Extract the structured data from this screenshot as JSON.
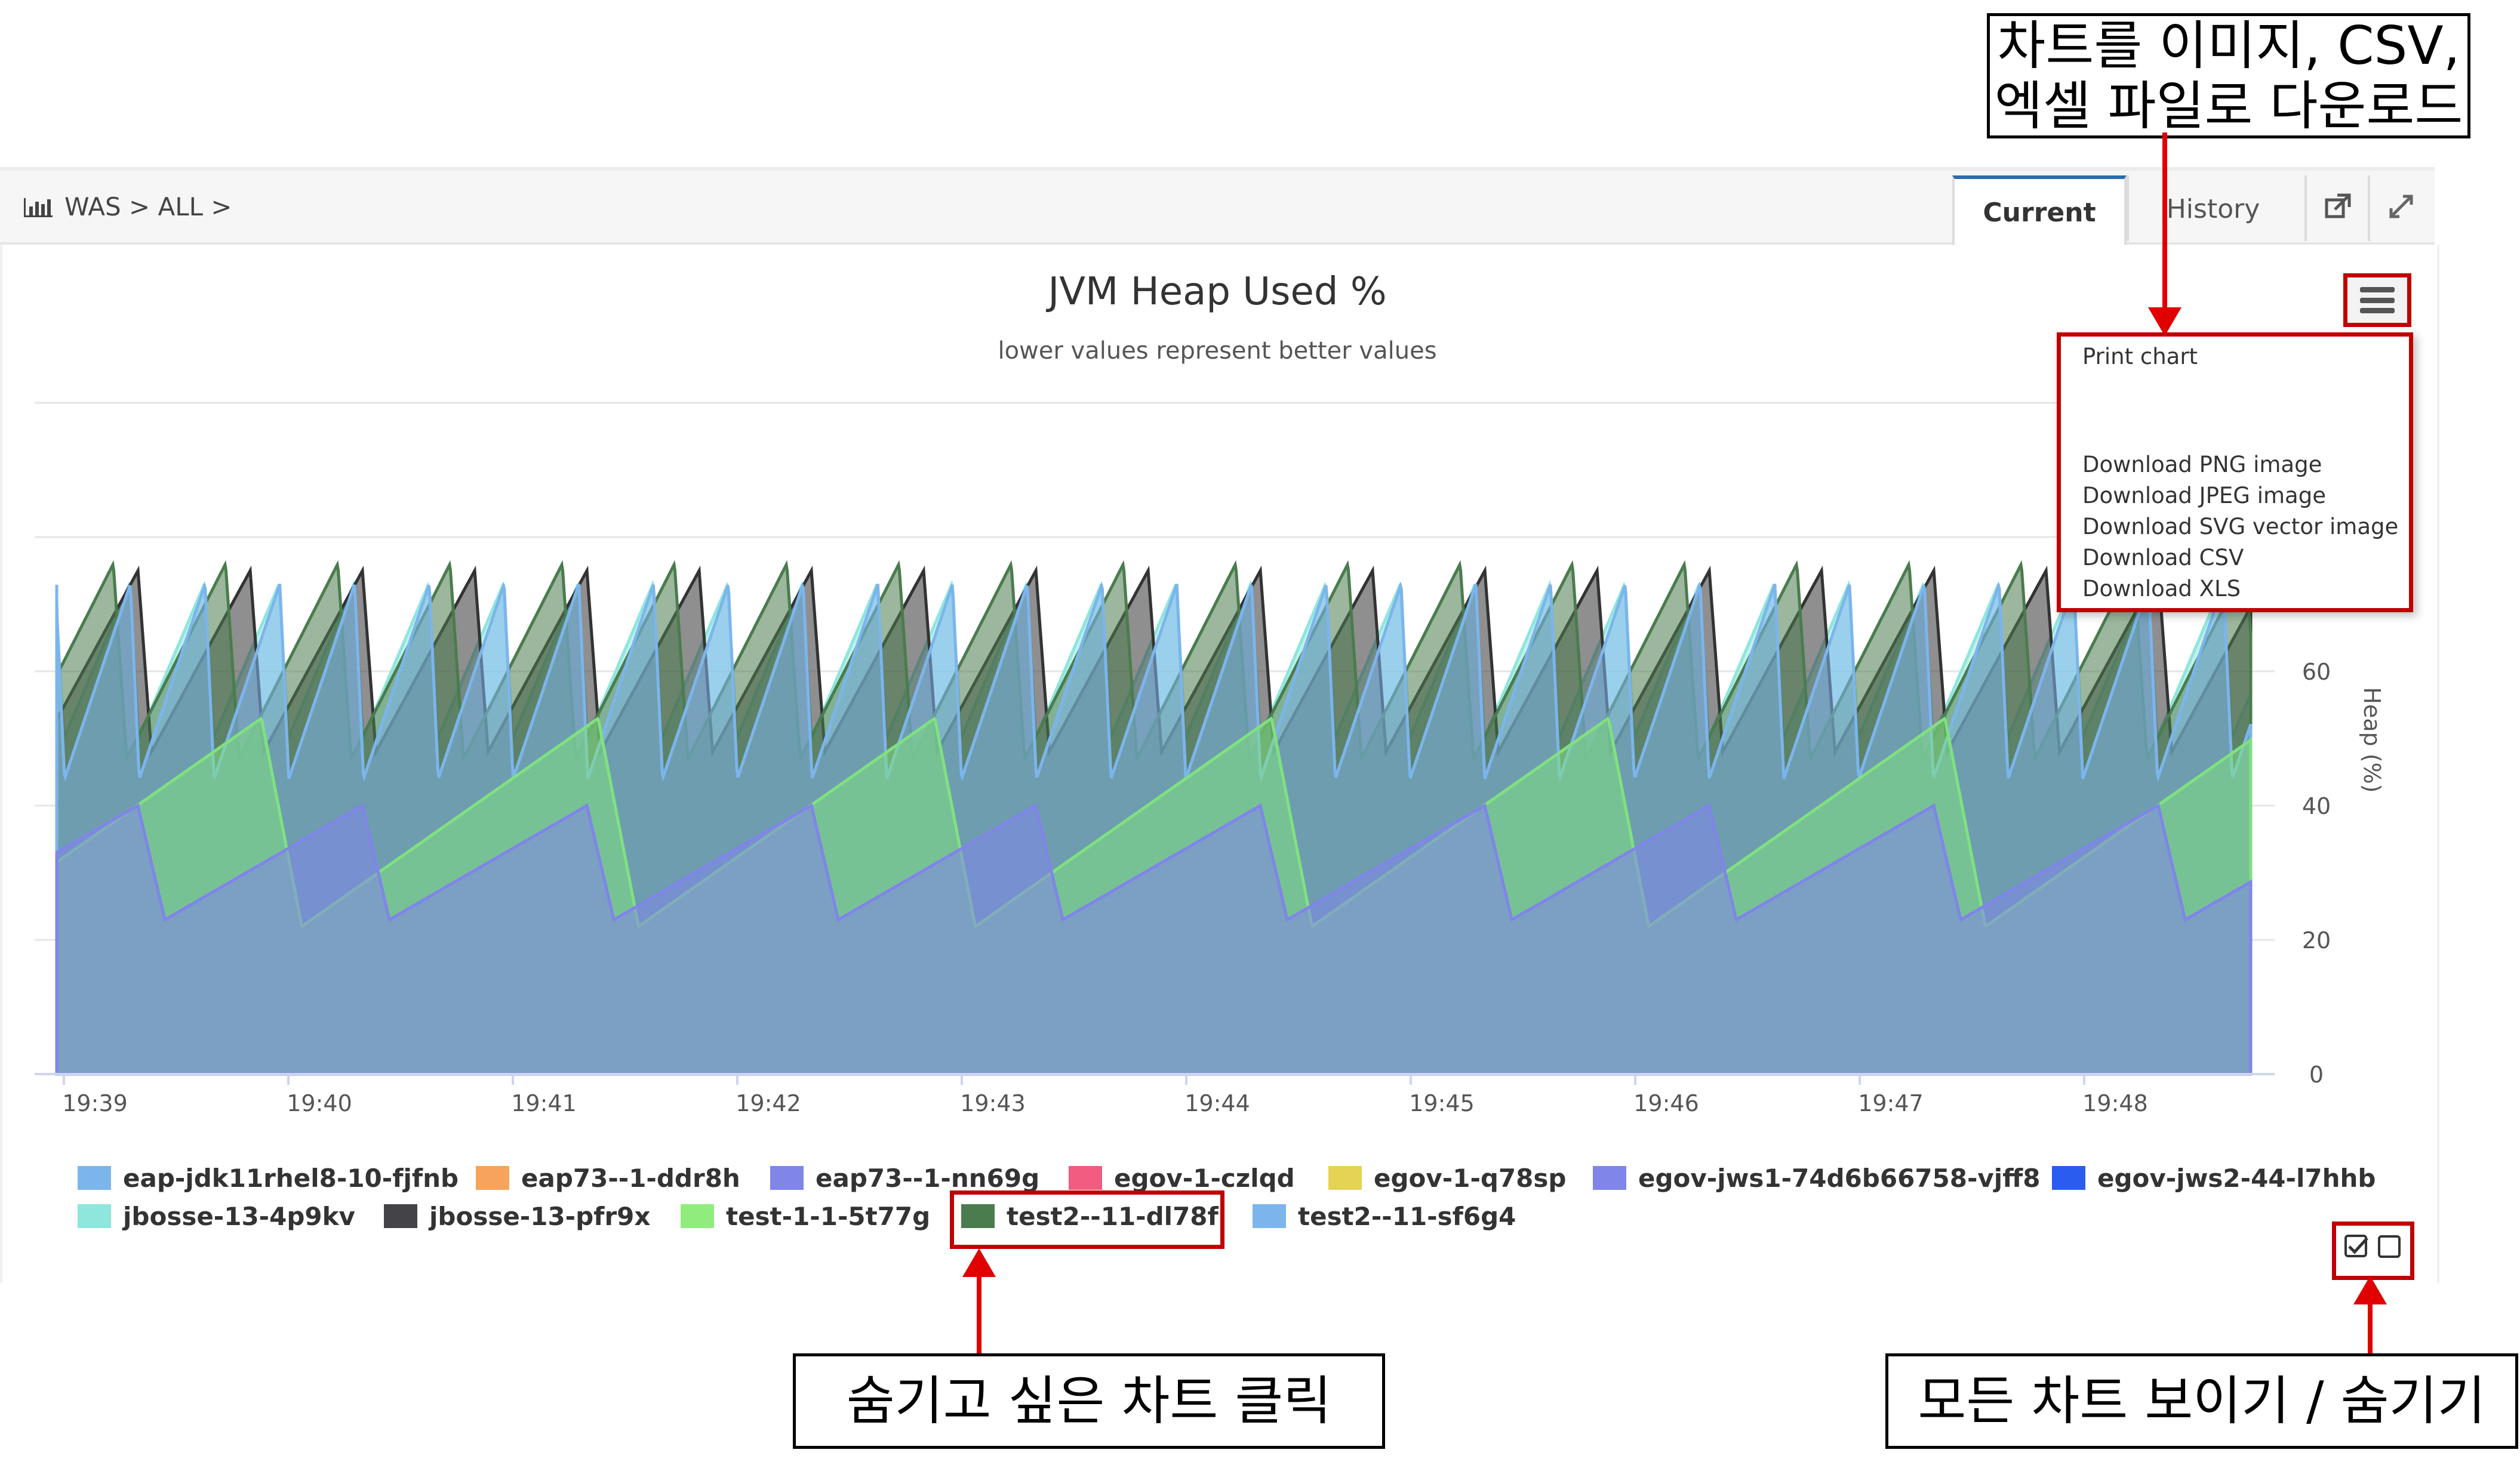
{
  "breadcrumb": {
    "icon": "bar-chart-icon",
    "text": "WAS > ALL >"
  },
  "tabs": [
    {
      "label": "Current",
      "active": true
    },
    {
      "label": "History",
      "active": false
    }
  ],
  "header_icons": [
    "external-link-icon",
    "expand-icon"
  ],
  "chart_data": {
    "type": "area",
    "title": "JVM Heap Used %",
    "subtitle": "lower values represent better values",
    "ylabel": "Heap (%)",
    "ylim": [
      0,
      100
    ],
    "yticks": [
      0,
      20,
      40,
      60
    ],
    "xticks": [
      "19:39",
      "19:40",
      "19:41",
      "19:42",
      "19:43",
      "19:44",
      "19:45",
      "19:46",
      "19:47",
      "19:48"
    ],
    "series": [
      {
        "name": "jbosse-13-4p9kv",
        "color": "#8ee6dc",
        "period_min": 0.333,
        "low": 50,
        "high": 73
      },
      {
        "name": "jbosse-13-pfr9x",
        "color": "#333333",
        "period_min": 0.5,
        "low": 48,
        "high": 75
      },
      {
        "name": "test2--11-dl78f",
        "color": "#4a7c4e",
        "period_min": 0.5,
        "low": 47,
        "high": 76
      },
      {
        "name": "test2--11-sf6g4",
        "color": "#7cb5ec",
        "period_min": 0.333,
        "low": 44,
        "high": 73
      },
      {
        "name": "test-1-1-5t77g",
        "color": "#80e080",
        "period_min": 1.5,
        "low": 22,
        "high": 53
      },
      {
        "name": "egov-jws1-74d6b66758-vjff8",
        "color": "#8085e9",
        "period_min": 1.0,
        "low": 23,
        "high": 40
      }
    ]
  },
  "menu": {
    "items": [
      "Print chart",
      "Download PNG image",
      "Download JPEG image",
      "Download SVG vector image",
      "Download CSV",
      "Download XLS"
    ]
  },
  "legend": [
    {
      "name": "eap-jdk11rhel8-10-fjfnb",
      "color": "#7cb5ec"
    },
    {
      "name": "eap73--1-ddr8h",
      "color": "#f7a35c"
    },
    {
      "name": "eap73--1-nn69g",
      "color": "#8085e9"
    },
    {
      "name": "egov-1-czlqd",
      "color": "#f15c80"
    },
    {
      "name": "egov-1-q78sp",
      "color": "#e4d354"
    },
    {
      "name": "egov-jws1-74d6b66758-vjff8",
      "color": "#8085e9"
    },
    {
      "name": "egov-jws2-44-l7hhb",
      "color": "#2b5cf0"
    },
    {
      "name": "jbosse-13-4p9kv",
      "color": "#8ee6dc"
    },
    {
      "name": "jbosse-13-pfr9x",
      "color": "#434348"
    },
    {
      "name": "test-1-1-5t77g",
      "color": "#90ed7d"
    },
    {
      "name": "test2--11-dl78f",
      "color": "#4a7c4e"
    },
    {
      "name": "test2--11-sf6g4",
      "color": "#7cb5ec"
    }
  ],
  "legend_toggles": [
    "show-all-checkbox",
    "hide-all-checkbox"
  ],
  "annotations": {
    "download": "차트를 이미지, CSV,\n엑셀 파일로 다운로드",
    "hide_chart": "숨기고 싶은 차트 클릭",
    "toggle_all": "모든 차트 보이기 / 숨기기"
  },
  "colors": {
    "highlight": "#c00000",
    "arrow": "#e00000",
    "tab_active_top": "#2b6cb0"
  }
}
